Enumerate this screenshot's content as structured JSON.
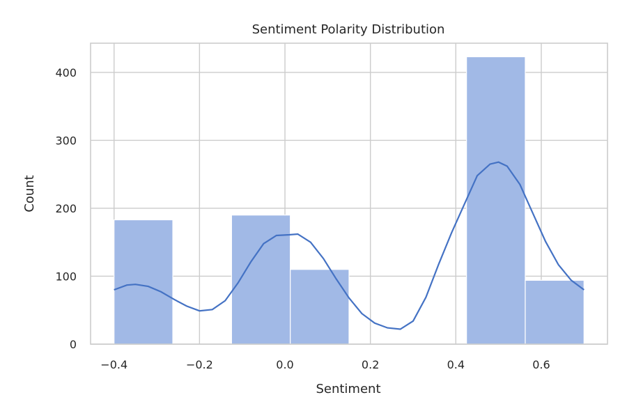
{
  "chart_data": {
    "type": "bar",
    "subtype": "histogram-with-kde",
    "title": "Sentiment Polarity Distribution",
    "xlabel": "Sentiment",
    "ylabel": "Count",
    "xlim": [
      -0.455,
      0.755
    ],
    "ylim": [
      0,
      443
    ],
    "xticks": [
      -0.4,
      -0.2,
      0.0,
      0.2,
      0.4,
      0.6
    ],
    "xtick_labels": [
      "−0.4",
      "−0.2",
      "0.0",
      "0.2",
      "0.4",
      "0.6"
    ],
    "yticks": [
      0,
      100,
      200,
      300,
      400
    ],
    "ytick_labels": [
      "0",
      "100",
      "200",
      "300",
      "400"
    ],
    "grid": true,
    "bars": [
      {
        "x0": -0.4,
        "x1": -0.2625,
        "count": 183
      },
      {
        "x0": -0.2625,
        "x1": -0.125,
        "count": 0
      },
      {
        "x0": -0.125,
        "x1": 0.0125,
        "count": 190
      },
      {
        "x0": 0.0125,
        "x1": 0.15,
        "count": 110
      },
      {
        "x0": 0.15,
        "x1": 0.2875,
        "count": 0
      },
      {
        "x0": 0.2875,
        "x1": 0.425,
        "count": 0
      },
      {
        "x0": 0.425,
        "x1": 0.5625,
        "count": 423
      },
      {
        "x0": 0.5625,
        "x1": 0.7,
        "count": 94
      }
    ],
    "kde": {
      "x": [
        -0.4,
        -0.37,
        -0.35,
        -0.32,
        -0.29,
        -0.26,
        -0.23,
        -0.2,
        -0.17,
        -0.14,
        -0.11,
        -0.08,
        -0.05,
        -0.02,
        0.01,
        0.03,
        0.06,
        0.09,
        0.12,
        0.15,
        0.18,
        0.21,
        0.24,
        0.27,
        0.3,
        0.33,
        0.36,
        0.39,
        0.42,
        0.45,
        0.48,
        0.5,
        0.52,
        0.55,
        0.58,
        0.61,
        0.64,
        0.67,
        0.7
      ],
      "y": [
        80,
        87,
        88,
        85,
        77,
        66,
        56,
        49,
        51,
        64,
        90,
        121,
        148,
        160,
        161,
        162,
        150,
        126,
        96,
        68,
        45,
        31,
        24,
        22,
        34,
        69,
        118,
        164,
        206,
        248,
        265,
        268,
        262,
        235,
        193,
        151,
        117,
        94,
        80
      ]
    }
  }
}
